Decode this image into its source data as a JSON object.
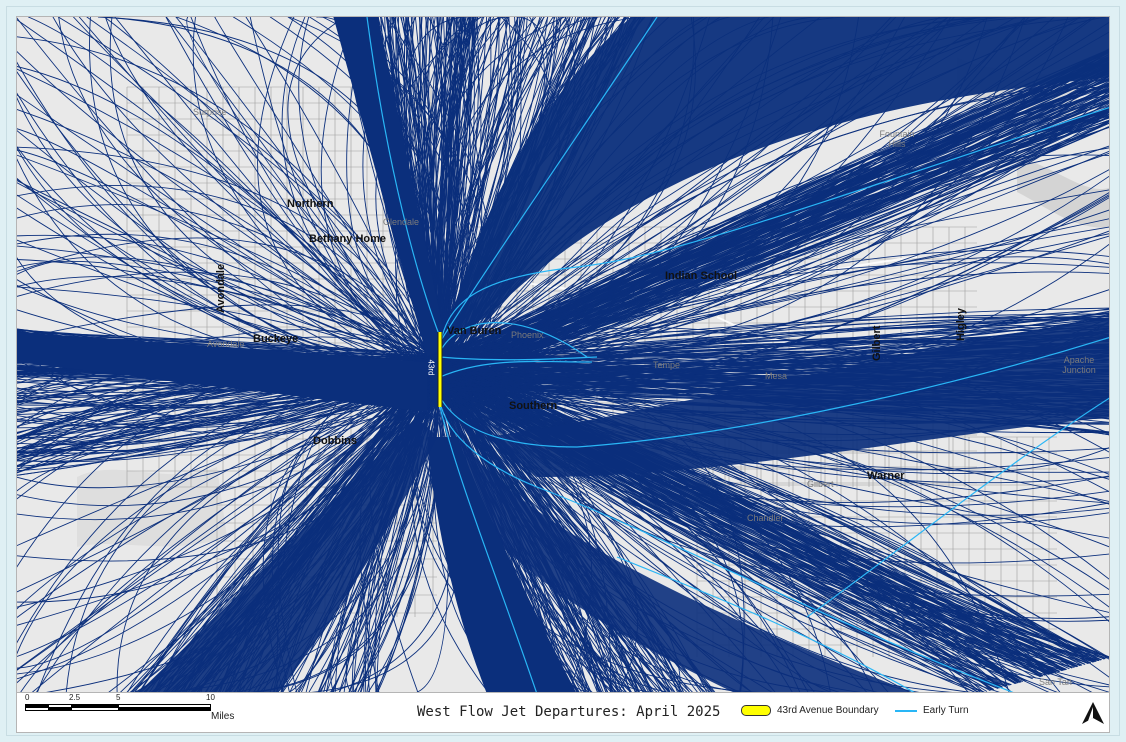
{
  "map": {
    "colors": {
      "background": "#e9e9e9",
      "roads": "#9e9e9e",
      "major_roads": "#ffffff",
      "tracks": "#0b2f7c",
      "early_turn": "#29b6f6",
      "boundary": "#ffff00"
    },
    "road_labels": [
      {
        "id": "northern",
        "text": "Northern"
      },
      {
        "id": "bethany-home",
        "text": "Bethany Home"
      },
      {
        "id": "indian-school",
        "text": "Indian School"
      },
      {
        "id": "van-buren",
        "text": "Van Buren"
      },
      {
        "id": "buckeye",
        "text": "Buckeye"
      },
      {
        "id": "southern",
        "text": "Southern"
      },
      {
        "id": "dobbins",
        "text": "Dobbins"
      },
      {
        "id": "warner",
        "text": "Warner"
      },
      {
        "id": "avondale",
        "text": "Avondale"
      },
      {
        "id": "gilbert",
        "text": "Gilbert"
      },
      {
        "id": "higley",
        "text": "Higley"
      }
    ],
    "city_labels": [
      {
        "id": "surprise",
        "text": "Surprise"
      },
      {
        "id": "glendale",
        "text": "Glendale"
      },
      {
        "id": "fountain-hills",
        "text": "Fountain Hills"
      },
      {
        "id": "phoenix",
        "text": "Phoenix"
      },
      {
        "id": "tempe",
        "text": "Tempe"
      },
      {
        "id": "mesa",
        "text": "Mesa"
      },
      {
        "id": "avondale-city",
        "text": "Avondale"
      },
      {
        "id": "gilbert-city",
        "text": "Gilbert"
      },
      {
        "id": "chandler",
        "text": "Chandler"
      },
      {
        "id": "apache-junction",
        "text": "Apache Junction"
      },
      {
        "id": "san-tan",
        "text": "San Tan"
      }
    ],
    "boundary_label": "43rd"
  },
  "footer": {
    "title": "West Flow Jet Departures: April 2025",
    "scale_bar": {
      "ticks": [
        "0",
        "2.5",
        "5",
        "10"
      ],
      "unit": "Miles"
    },
    "legend": {
      "boundary_label": "43rd Avenue Boundary",
      "early_turn_label": "Early Turn"
    },
    "north_arrow_icon": "north-arrow-icon"
  }
}
